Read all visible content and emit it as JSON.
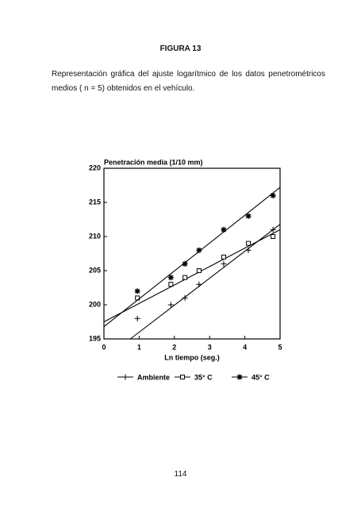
{
  "document": {
    "heading": "FIGURA 13",
    "caption_lines": [
      "Representación gráfica del ajuste logarítmico de los datos penetrométricos",
      "medios ( n = 5) obtenidos en el vehículo."
    ],
    "page_number": "114"
  },
  "chart_data": {
    "type": "scatter",
    "y_label": "Penetración media (1/10 mm)",
    "x_label": "Ln tiempo (seg.)",
    "x": [
      0.95,
      1.9,
      2.3,
      2.7,
      3.4,
      4.1,
      4.8
    ],
    "xlim": [
      0,
      5
    ],
    "xticks": [
      0,
      1,
      2,
      3,
      4,
      5
    ],
    "ylim": [
      195,
      220
    ],
    "yticks": [
      195,
      200,
      205,
      210,
      215,
      220
    ],
    "series": [
      {
        "name": "Ambiente",
        "marker": "plus",
        "color": "#000000",
        "values": [
          198,
          200,
          201,
          203,
          206,
          208,
          211
        ],
        "fit": {
          "x": [
            0.75,
            5
          ],
          "values": [
            195,
            211.8
          ]
        }
      },
      {
        "name": "35° C",
        "marker": "square",
        "color": "#000000",
        "values": [
          201,
          203,
          204,
          205,
          207,
          209,
          210
        ],
        "fit": {
          "x": [
            0,
            5
          ],
          "values": [
            197.5,
            211
          ]
        }
      },
      {
        "name": "45° C",
        "marker": "asterisk",
        "color": "#000000",
        "values": [
          202,
          204,
          206,
          208,
          211,
          213,
          216
        ],
        "fit": {
          "x": [
            0,
            5
          ],
          "values": [
            196.8,
            217.2
          ]
        }
      }
    ]
  }
}
